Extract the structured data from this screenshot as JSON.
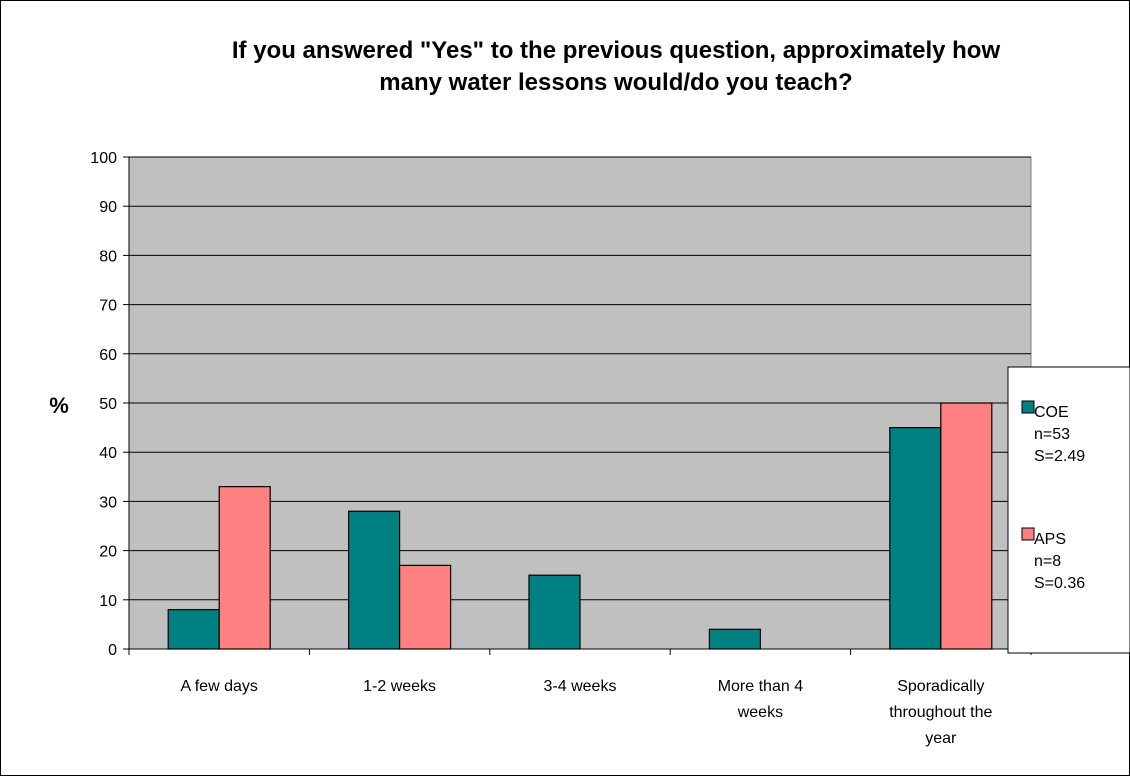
{
  "chart_data": {
    "type": "bar",
    "title": "If you answered \"Yes\" to the previous question, approximately how many water lessons would/do you teach?",
    "title_lines": [
      "If you answered \"Yes\" to the previous question, approximately how",
      "many water lessons would/do you teach?"
    ],
    "ylabel": "%",
    "xlabel": "",
    "ylim": [
      0,
      100
    ],
    "yticks": [
      "0",
      "10",
      "20",
      "30",
      "40",
      "50",
      "60",
      "70",
      "80",
      "90",
      "100"
    ],
    "categories": [
      "A few days",
      "1-2 weeks",
      "3-4 weeks",
      "More than 4 weeks",
      "Sporadically throughout the year"
    ],
    "category_lines": [
      [
        "A few days"
      ],
      [
        "1-2 weeks"
      ],
      [
        "3-4 weeks"
      ],
      [
        "More than 4",
        "weeks"
      ],
      [
        "Sporadically",
        "throughout the",
        "year"
      ]
    ],
    "series": [
      {
        "name": "COE",
        "legend_lines": [
          "COE",
          "n=53",
          "S=2.49"
        ],
        "color": "#008080",
        "values": [
          8,
          28,
          15,
          4,
          45
        ]
      },
      {
        "name": "APS",
        "legend_lines": [
          "APS",
          "n=8",
          "S=0.36"
        ],
        "color": "#ff8080",
        "values": [
          33,
          17,
          0,
          0,
          50
        ]
      }
    ],
    "plot_background": "#c0c0c0",
    "grid": true,
    "legend_position": "right"
  }
}
